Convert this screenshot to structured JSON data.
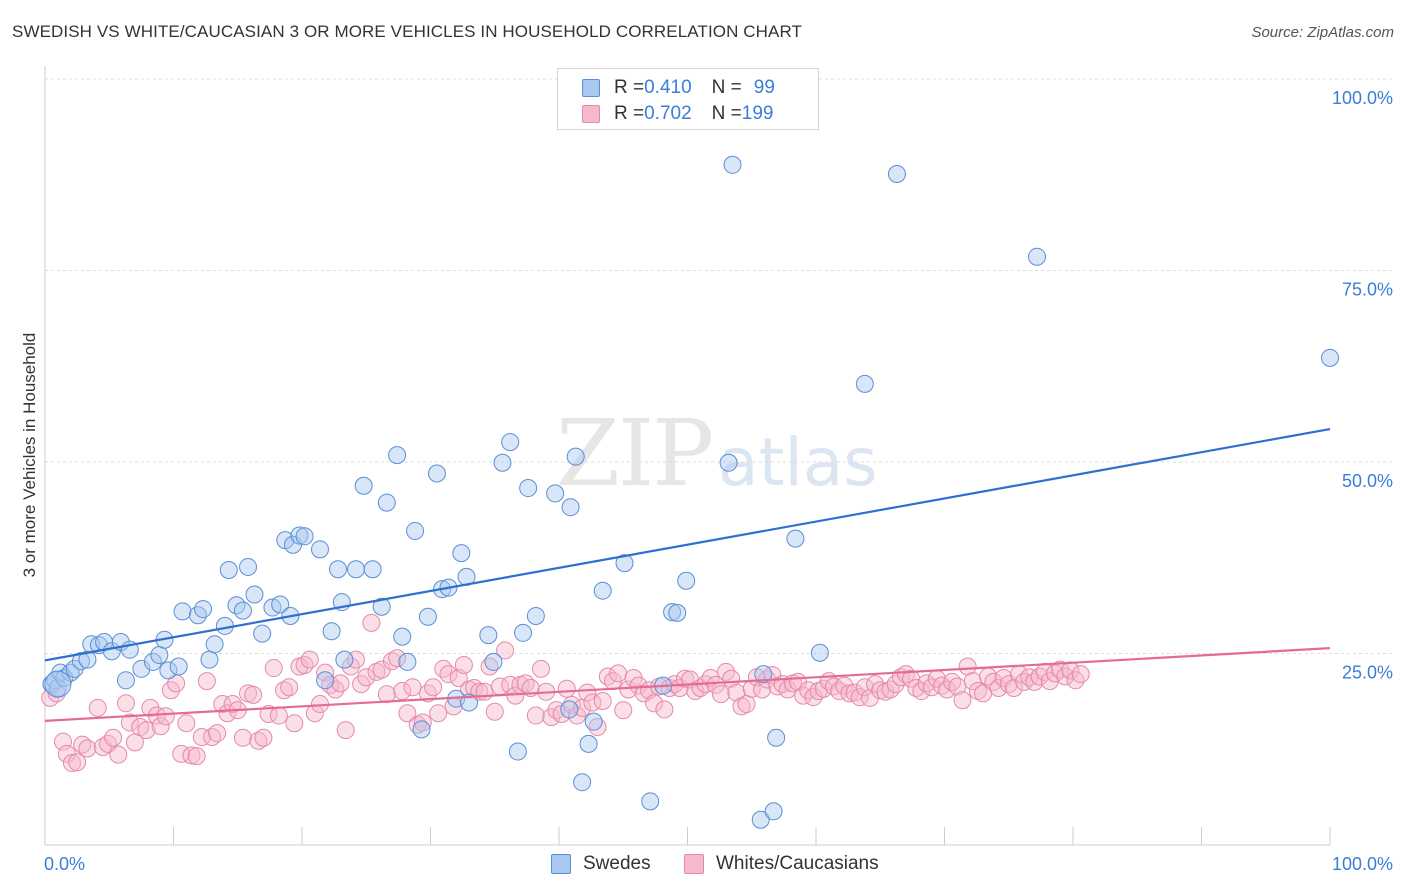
{
  "title": "SWEDISH VS WHITE/CAUCASIAN 3 OR MORE VEHICLES IN HOUSEHOLD CORRELATION CHART",
  "source": "Source: ZipAtlas.com",
  "watermark": {
    "zip": "ZIP",
    "atlas": "atlas"
  },
  "legend": {
    "rows": [
      {
        "r_label": "R = ",
        "r_value": "0.410",
        "n_label": "N = ",
        "n_value": "99"
      },
      {
        "r_label": "R = ",
        "r_value": "0.702",
        "n_label": "N = ",
        "n_value": "199"
      }
    ]
  },
  "bottom_legend": [
    "Swedes",
    "Whites/Caucasians"
  ],
  "colors": {
    "blue_fill": "#a9c8f0",
    "blue_stroke": "#5a8fd6",
    "blue_line": "#2f6fd0",
    "pink_fill": "#f6b8cb",
    "pink_stroke": "#e58aa9",
    "pink_line": "#e46b96",
    "axis_text": "#3b7dd8",
    "grid": "#dedede"
  },
  "chart_data": {
    "type": "scatter",
    "title": "SWEDISH VS WHITE/CAUCASIAN 3 OR MORE VEHICLES IN HOUSEHOLD CORRELATION CHART",
    "xlabel": "",
    "ylabel": "3 or more Vehicles in Household",
    "xlim": [
      0,
      100
    ],
    "ylim": [
      0,
      100
    ],
    "x_tick_labels": [
      "0.0%",
      "100.0%"
    ],
    "y_ticks": [
      25,
      50,
      75,
      100
    ],
    "y_tick_labels": [
      "25.0%",
      "50.0%",
      "75.0%",
      "100.0%"
    ],
    "grid": true,
    "legend_position": "top-center",
    "series": [
      {
        "name": "Swedes",
        "r": 0.41,
        "n": 99,
        "trend": {
          "x": [
            0,
            100
          ],
          "y": [
            24.1,
            54.3
          ]
        },
        "points": [
          [
            0.5,
            21.0
          ],
          [
            0.8,
            21.5
          ],
          [
            1.0,
            20.5
          ],
          [
            1.2,
            22.5
          ],
          [
            1.5,
            21.8
          ],
          [
            2.0,
            22.5
          ],
          [
            2.3,
            23.0
          ],
          [
            2.8,
            24.0
          ],
          [
            3.3,
            24.2
          ],
          [
            3.6,
            26.2
          ],
          [
            4.2,
            26.1
          ],
          [
            4.6,
            26.5
          ],
          [
            5.2,
            25.3
          ],
          [
            5.9,
            26.5
          ],
          [
            6.3,
            21.5
          ],
          [
            6.6,
            25.5
          ],
          [
            7.5,
            23.0
          ],
          [
            8.4,
            23.9
          ],
          [
            8.9,
            24.8
          ],
          [
            9.3,
            26.8
          ],
          [
            9.6,
            22.8
          ],
          [
            10.4,
            23.3
          ],
          [
            10.7,
            30.5
          ],
          [
            11.9,
            30.0
          ],
          [
            12.3,
            30.8
          ],
          [
            12.8,
            24.2
          ],
          [
            13.2,
            26.2
          ],
          [
            14.0,
            28.6
          ],
          [
            14.3,
            35.9
          ],
          [
            14.9,
            31.3
          ],
          [
            15.4,
            30.6
          ],
          [
            15.8,
            36.3
          ],
          [
            16.3,
            32.7
          ],
          [
            16.9,
            27.6
          ],
          [
            17.7,
            31.0
          ],
          [
            18.3,
            31.4
          ],
          [
            18.7,
            39.8
          ],
          [
            19.1,
            29.9
          ],
          [
            19.3,
            39.2
          ],
          [
            19.8,
            40.4
          ],
          [
            20.2,
            40.3
          ],
          [
            21.4,
            38.6
          ],
          [
            21.8,
            21.5
          ],
          [
            22.3,
            27.9
          ],
          [
            22.8,
            36.0
          ],
          [
            23.1,
            31.7
          ],
          [
            23.3,
            24.2
          ],
          [
            24.2,
            36.0
          ],
          [
            24.8,
            46.9
          ],
          [
            25.5,
            36.0
          ],
          [
            26.2,
            31.1
          ],
          [
            26.6,
            44.7
          ],
          [
            27.4,
            50.9
          ],
          [
            27.8,
            27.2
          ],
          [
            28.2,
            23.9
          ],
          [
            28.8,
            41.0
          ],
          [
            29.3,
            15.1
          ],
          [
            29.8,
            29.8
          ],
          [
            30.5,
            48.5
          ],
          [
            30.9,
            33.4
          ],
          [
            31.4,
            33.6
          ],
          [
            32.0,
            19.1
          ],
          [
            32.4,
            38.1
          ],
          [
            32.8,
            35.0
          ],
          [
            33.0,
            18.6
          ],
          [
            34.5,
            27.4
          ],
          [
            34.9,
            23.9
          ],
          [
            35.6,
            49.9
          ],
          [
            36.2,
            52.6
          ],
          [
            36.8,
            12.2
          ],
          [
            37.2,
            27.7
          ],
          [
            37.6,
            46.6
          ],
          [
            38.2,
            29.9
          ],
          [
            39.7,
            45.9
          ],
          [
            40.8,
            17.7
          ],
          [
            40.9,
            44.1
          ],
          [
            41.3,
            50.7
          ],
          [
            41.8,
            8.2
          ],
          [
            42.3,
            13.2
          ],
          [
            42.7,
            16.1
          ],
          [
            43.4,
            33.2
          ],
          [
            45.1,
            36.8
          ],
          [
            47.1,
            5.7
          ],
          [
            48.1,
            20.8
          ],
          [
            48.8,
            30.4
          ],
          [
            49.2,
            30.3
          ],
          [
            49.9,
            34.5
          ],
          [
            53.2,
            49.9
          ],
          [
            53.5,
            88.8
          ],
          [
            55.7,
            3.3
          ],
          [
            55.9,
            22.3
          ],
          [
            56.7,
            4.4
          ],
          [
            56.9,
            14.0
          ],
          [
            58.4,
            40.0
          ],
          [
            60.3,
            25.1
          ],
          [
            63.8,
            60.2
          ],
          [
            66.3,
            87.6
          ],
          [
            77.2,
            76.8
          ],
          [
            100.0,
            63.6
          ]
        ]
      },
      {
        "name": "Whites/Caucasians",
        "r": 0.702,
        "n": 199,
        "trend": {
          "x": [
            0,
            100
          ],
          "y": [
            16.2,
            25.7
          ]
        },
        "points": [
          [
            0.4,
            19.2
          ],
          [
            0.9,
            19.8
          ],
          [
            1.4,
            13.5
          ],
          [
            1.7,
            11.9
          ],
          [
            2.1,
            10.7
          ],
          [
            2.5,
            10.8
          ],
          [
            2.9,
            13.1
          ],
          [
            3.3,
            12.6
          ],
          [
            4.1,
            17.9
          ],
          [
            4.5,
            12.8
          ],
          [
            4.9,
            13.2
          ],
          [
            5.3,
            14.0
          ],
          [
            5.7,
            11.8
          ],
          [
            6.3,
            18.5
          ],
          [
            6.6,
            16.0
          ],
          [
            7.0,
            13.4
          ],
          [
            7.4,
            15.4
          ],
          [
            7.9,
            15.0
          ],
          [
            8.2,
            17.9
          ],
          [
            8.7,
            16.9
          ],
          [
            9.0,
            15.5
          ],
          [
            9.4,
            16.8
          ],
          [
            9.8,
            20.2
          ],
          [
            10.2,
            21.1
          ],
          [
            10.6,
            11.9
          ],
          [
            11.0,
            15.9
          ],
          [
            11.4,
            11.7
          ],
          [
            11.8,
            11.6
          ],
          [
            12.2,
            14.1
          ],
          [
            12.6,
            21.4
          ],
          [
            13.0,
            14.1
          ],
          [
            13.4,
            14.6
          ],
          [
            13.8,
            18.4
          ],
          [
            14.2,
            17.2
          ],
          [
            14.6,
            18.4
          ],
          [
            15.0,
            17.6
          ],
          [
            15.4,
            14.0
          ],
          [
            15.8,
            19.8
          ],
          [
            16.2,
            19.6
          ],
          [
            16.6,
            13.6
          ],
          [
            17.0,
            14.0
          ],
          [
            17.4,
            17.1
          ],
          [
            17.8,
            23.1
          ],
          [
            18.2,
            16.9
          ],
          [
            18.6,
            20.2
          ],
          [
            19.0,
            20.6
          ],
          [
            19.4,
            15.9
          ],
          [
            19.8,
            23.3
          ],
          [
            20.2,
            23.5
          ],
          [
            20.6,
            24.2
          ],
          [
            21.0,
            17.2
          ],
          [
            21.4,
            18.4
          ],
          [
            21.8,
            22.5
          ],
          [
            22.2,
            20.9
          ],
          [
            22.6,
            20.3
          ],
          [
            23.0,
            21.1
          ],
          [
            23.4,
            15.0
          ],
          [
            23.8,
            23.3
          ],
          [
            24.2,
            24.2
          ],
          [
            24.6,
            21.0
          ],
          [
            25.0,
            21.9
          ],
          [
            25.4,
            29.0
          ],
          [
            25.8,
            22.6
          ],
          [
            26.2,
            22.9
          ],
          [
            26.6,
            19.7
          ],
          [
            27.0,
            24.0
          ],
          [
            27.4,
            24.4
          ],
          [
            27.8,
            20.1
          ],
          [
            28.2,
            17.2
          ],
          [
            28.6,
            20.6
          ],
          [
            29.0,
            15.7
          ],
          [
            29.4,
            16.0
          ],
          [
            29.8,
            19.8
          ],
          [
            30.2,
            20.6
          ],
          [
            30.6,
            17.2
          ],
          [
            31.0,
            23.0
          ],
          [
            31.4,
            22.3
          ],
          [
            31.8,
            18.1
          ],
          [
            32.2,
            21.8
          ],
          [
            32.6,
            23.5
          ],
          [
            33.0,
            20.3
          ],
          [
            33.4,
            20.5
          ],
          [
            33.8,
            20.0
          ],
          [
            34.2,
            20.0
          ],
          [
            34.6,
            23.3
          ],
          [
            35.0,
            17.4
          ],
          [
            35.4,
            20.7
          ],
          [
            35.8,
            25.4
          ],
          [
            36.2,
            20.9
          ],
          [
            36.6,
            19.5
          ],
          [
            37.0,
            20.9
          ],
          [
            37.4,
            21.1
          ],
          [
            37.8,
            20.5
          ],
          [
            38.2,
            16.9
          ],
          [
            38.6,
            23.0
          ],
          [
            39.0,
            20.0
          ],
          [
            39.4,
            16.7
          ],
          [
            39.8,
            17.6
          ],
          [
            40.2,
            17.1
          ],
          [
            40.6,
            20.4
          ],
          [
            41.0,
            18.3
          ],
          [
            41.4,
            16.9
          ],
          [
            41.8,
            17.9
          ],
          [
            42.2,
            19.9
          ],
          [
            42.6,
            18.6
          ],
          [
            43.0,
            15.4
          ],
          [
            43.4,
            18.8
          ],
          [
            43.8,
            22.0
          ],
          [
            44.2,
            21.4
          ],
          [
            44.6,
            22.4
          ],
          [
            45.0,
            17.6
          ],
          [
            45.4,
            20.3
          ],
          [
            45.8,
            21.8
          ],
          [
            46.2,
            20.8
          ],
          [
            46.6,
            19.8
          ],
          [
            47.0,
            20.2
          ],
          [
            47.4,
            18.5
          ],
          [
            47.8,
            20.7
          ],
          [
            48.2,
            17.7
          ],
          [
            48.6,
            20.5
          ],
          [
            49.0,
            21.0
          ],
          [
            49.4,
            20.5
          ],
          [
            49.8,
            21.7
          ],
          [
            50.2,
            21.6
          ],
          [
            50.6,
            20.1
          ],
          [
            51.0,
            20.5
          ],
          [
            51.4,
            21.0
          ],
          [
            51.8,
            21.8
          ],
          [
            52.2,
            20.9
          ],
          [
            52.6,
            19.7
          ],
          [
            53.0,
            22.6
          ],
          [
            53.4,
            21.7
          ],
          [
            53.8,
            19.9
          ],
          [
            54.2,
            18.1
          ],
          [
            54.6,
            18.4
          ],
          [
            55.0,
            20.4
          ],
          [
            55.4,
            21.9
          ],
          [
            55.8,
            20.3
          ],
          [
            56.2,
            21.6
          ],
          [
            56.6,
            22.2
          ],
          [
            57.0,
            20.7
          ],
          [
            57.4,
            21.0
          ],
          [
            57.8,
            20.3
          ],
          [
            58.2,
            21.1
          ],
          [
            58.6,
            21.3
          ],
          [
            59.0,
            19.5
          ],
          [
            59.4,
            20.2
          ],
          [
            59.8,
            19.3
          ],
          [
            60.2,
            20.1
          ],
          [
            60.6,
            20.4
          ],
          [
            61.0,
            21.4
          ],
          [
            61.4,
            20.7
          ],
          [
            61.8,
            20.1
          ],
          [
            62.2,
            20.8
          ],
          [
            62.6,
            19.8
          ],
          [
            63.0,
            19.9
          ],
          [
            63.4,
            19.3
          ],
          [
            63.8,
            20.6
          ],
          [
            64.2,
            19.2
          ],
          [
            64.6,
            21.0
          ],
          [
            65.0,
            20.2
          ],
          [
            65.4,
            20.0
          ],
          [
            65.8,
            20.3
          ],
          [
            66.2,
            21.0
          ],
          [
            66.6,
            21.9
          ],
          [
            67.0,
            22.3
          ],
          [
            67.4,
            21.7
          ],
          [
            67.8,
            20.5
          ],
          [
            68.2,
            20.1
          ],
          [
            68.6,
            21.1
          ],
          [
            69.0,
            20.6
          ],
          [
            69.4,
            21.7
          ],
          [
            69.8,
            20.8
          ],
          [
            70.2,
            20.3
          ],
          [
            70.6,
            21.3
          ],
          [
            71.0,
            20.7
          ],
          [
            71.4,
            18.9
          ],
          [
            71.8,
            23.3
          ],
          [
            72.2,
            21.4
          ],
          [
            72.6,
            20.1
          ],
          [
            73.0,
            19.8
          ],
          [
            73.4,
            22.0
          ],
          [
            73.8,
            21.3
          ],
          [
            74.2,
            20.5
          ],
          [
            74.6,
            21.8
          ],
          [
            75.0,
            21.0
          ],
          [
            75.4,
            20.5
          ],
          [
            75.8,
            22.3
          ],
          [
            76.2,
            21.3
          ],
          [
            76.6,
            21.9
          ],
          [
            77.0,
            21.3
          ],
          [
            77.4,
            22.0
          ],
          [
            77.8,
            22.6
          ],
          [
            78.2,
            21.4
          ],
          [
            78.6,
            22.4
          ],
          [
            79.0,
            22.9
          ],
          [
            79.4,
            22.0
          ],
          [
            79.8,
            22.8
          ],
          [
            80.2,
            21.5
          ],
          [
            80.6,
            22.3
          ]
        ]
      }
    ]
  }
}
